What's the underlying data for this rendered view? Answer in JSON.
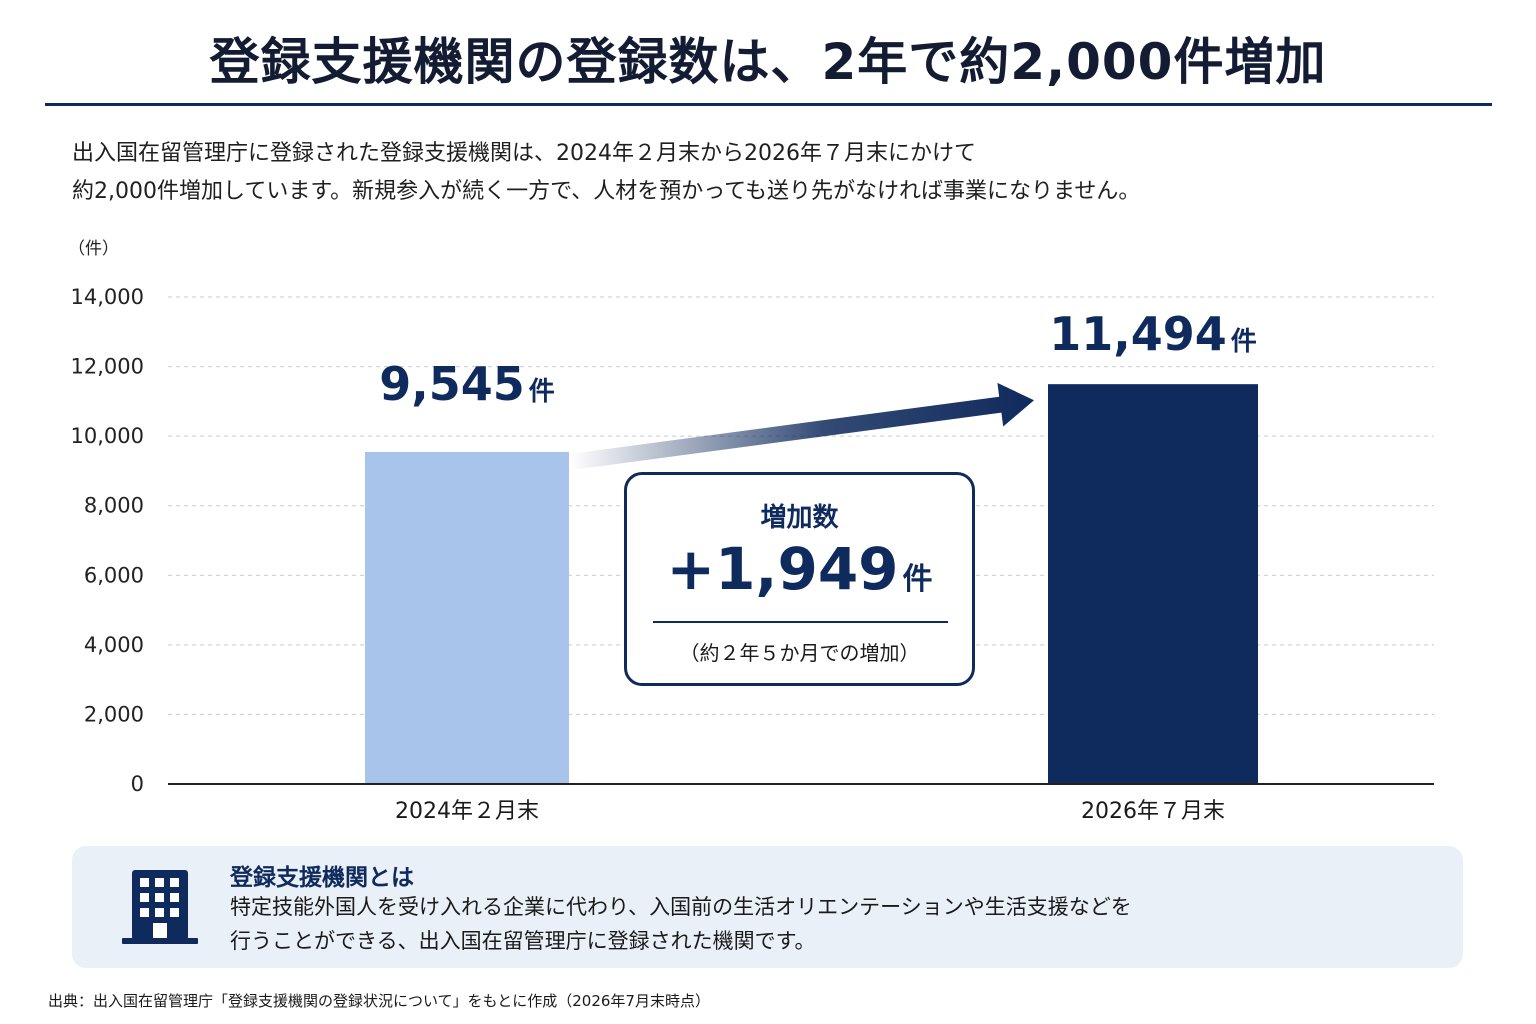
{
  "title": "登録支援機関の登録数は、2年で約2,000件増加",
  "intro": {
    "line1": "出入国在留管理庁に登録された登録支援機関は、2024年２月末から2026年７月末にかけて",
    "line2": "約2,000件増加しています。新規参入が続く一方で、人材を預かっても送り先がなければ事業になりません。"
  },
  "chart_data": {
    "type": "bar",
    "unit_label": "（件）",
    "categories": [
      "2024年２月末",
      "2026年７月末"
    ],
    "values": [
      9545,
      11494
    ],
    "value_labels": [
      "9,545",
      "11,494"
    ],
    "value_unit": "件",
    "bar_colors": [
      "#a9c4ea",
      "#0f2a5c"
    ],
    "ylim": [
      0,
      14000
    ],
    "yticks": [
      0,
      2000,
      4000,
      6000,
      8000,
      10000,
      12000,
      14000
    ],
    "ytick_labels": [
      "0",
      "2,000",
      "4,000",
      "6,000",
      "8,000",
      "10,000",
      "12,000",
      "14,000"
    ],
    "grid": true
  },
  "increase": {
    "title": "増加数",
    "value": "+1,949",
    "unit": "件",
    "note": "（約２年５か月での増加）"
  },
  "info": {
    "icon": "building-icon",
    "title": "登録支援機関とは",
    "line1": "特定技能外国人を受け入れる企業に代わり、入国前の生活オリエンテーションや生活支援などを",
    "line2": "行うことができる、出入国在留管理庁に登録された機関です。"
  },
  "source": "出典：出入国在留管理庁「登録支援機関の登録状況について」をもとに作成（2026年7月末時点）",
  "colors": {
    "navy": "#0f2a5c",
    "light_bar": "#a9c4ea",
    "info_bg": "#eaf0f8"
  }
}
